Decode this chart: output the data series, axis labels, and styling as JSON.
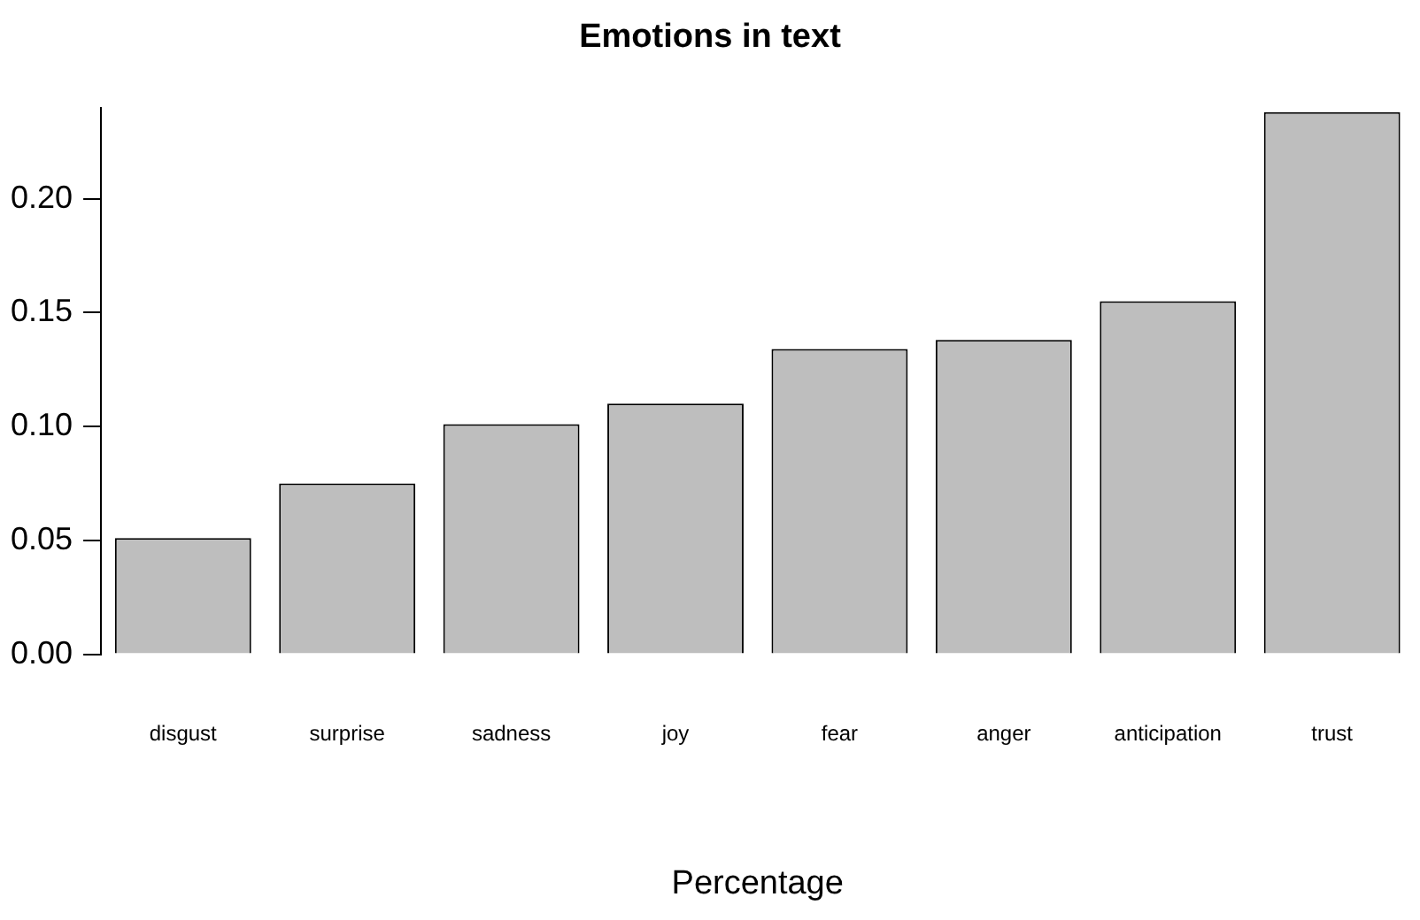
{
  "chart_data": {
    "type": "bar",
    "title": "Emotions in text",
    "xlabel": "Percentage",
    "categories": [
      "disgust",
      "surprise",
      "sadness",
      "joy",
      "fear",
      "anger",
      "anticipation",
      "trust"
    ],
    "values": [
      0.051,
      0.075,
      0.101,
      0.11,
      0.134,
      0.138,
      0.155,
      0.238
    ],
    "color": "#bebebe",
    "ylim": [
      0,
      0.24
    ],
    "yticks": [
      {
        "value": 0,
        "label": "0.00"
      },
      {
        "value": 0.05,
        "label": "0.05"
      },
      {
        "value": 0.1,
        "label": "0.10"
      },
      {
        "value": 0.15,
        "label": "0.15"
      },
      {
        "value": 0.2,
        "label": "0.20"
      }
    ],
    "grid": false,
    "legend": false
  }
}
